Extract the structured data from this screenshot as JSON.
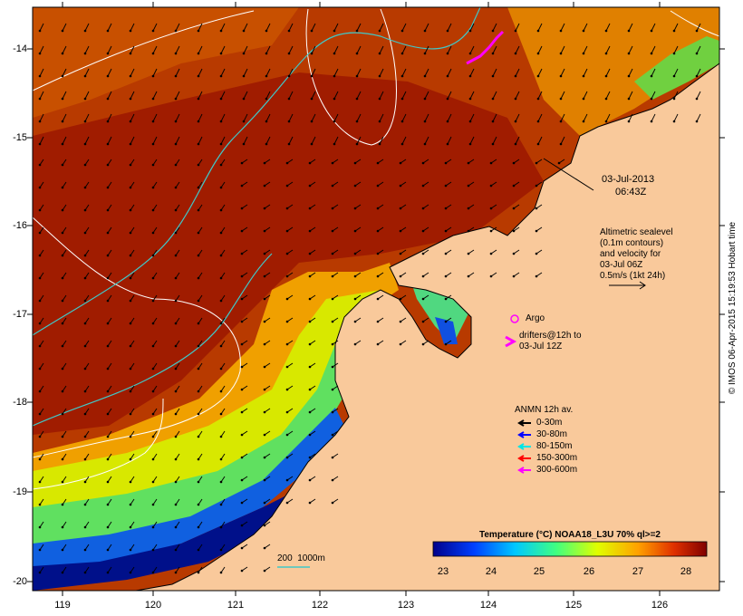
{
  "map": {
    "lat_ticks": [
      "-14",
      "-15",
      "-16",
      "-17",
      "-18",
      "-19",
      "-20"
    ],
    "lon_ticks": [
      "119",
      "120",
      "121",
      "122",
      "123",
      "124",
      "125",
      "126"
    ],
    "timestamp": [
      "03-Jul-2013",
      "06:43Z"
    ],
    "altimetry_note": [
      "Altimetric sealevel",
      "(0.1m contours)",
      "and velocity for",
      "03-Jul 06Z",
      "0.5m/s (1kt 24h)"
    ],
    "argo_label": "Argo",
    "drifters_label": [
      "drifters@12h to",
      "03-Jul 12Z"
    ],
    "bathy_label": "200  1000m",
    "anmn": {
      "title": "ANMN 12h av.",
      "items": [
        {
          "label": "0-30m",
          "color": "#000000"
        },
        {
          "label": "30-80m",
          "color": "#0000ff"
        },
        {
          "label": "80-150m",
          "color": "#00e5e5"
        },
        {
          "label": "150-300m",
          "color": "#ff0000"
        },
        {
          "label": "300-600m",
          "color": "#ff00ff"
        }
      ]
    },
    "colorbar": {
      "title": "Temperature (°C) NOAA18_L3U 70% ql>=2",
      "ticks": [
        "23",
        "24",
        "25",
        "26",
        "27",
        "28"
      ]
    },
    "credit": "© IMOS 06-Apr-2015 15:19:53 Hobart time",
    "colors": {
      "land": "#f9c99b",
      "warm_sea": "#a52200",
      "marker": "#ff00ff",
      "contour": "#ffffff",
      "isobath": "#40c8c8"
    }
  }
}
